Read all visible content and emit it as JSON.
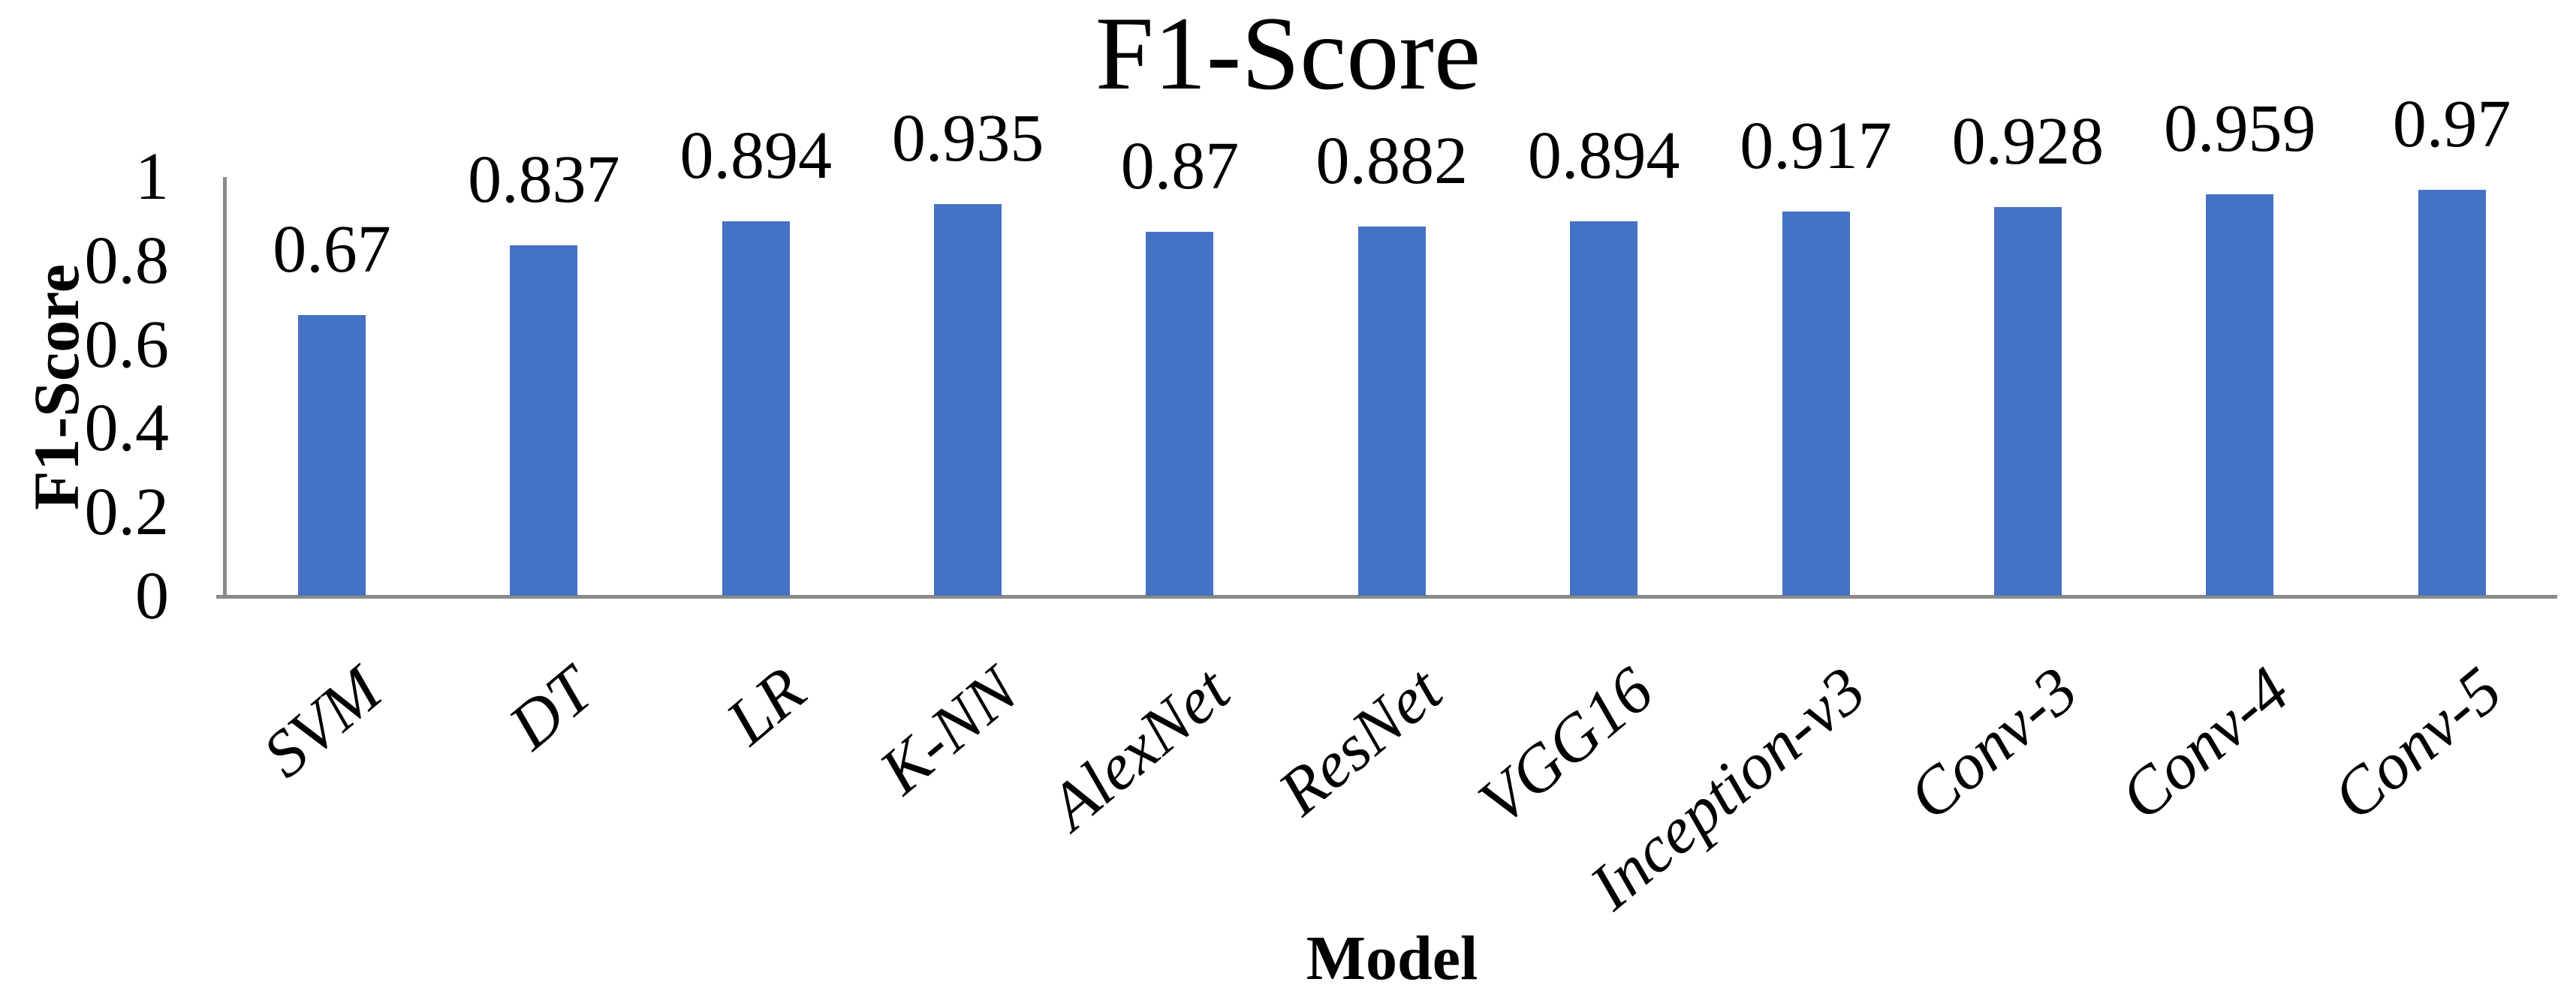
{
  "chart_data": {
    "type": "bar",
    "title": "F1-Score",
    "xlabel": "Model",
    "ylabel": "F1-Score",
    "categories": [
      "SVM",
      "DT",
      "LR",
      "K-NN",
      "AlexNet",
      "ResNet",
      "VGG16",
      "Inception-v3",
      "Conv-3",
      "Conv-4",
      "Conv-5"
    ],
    "values": [
      0.67,
      0.837,
      0.894,
      0.935,
      0.87,
      0.882,
      0.894,
      0.917,
      0.928,
      0.959,
      0.97
    ],
    "data_labels": [
      "0.67",
      "0.837",
      "0.894",
      "0.935",
      "0.87",
      "0.882",
      "0.894",
      "0.917",
      "0.928",
      "0.959",
      "0.97"
    ],
    "y_ticks": [
      {
        "value": 1,
        "label": "1"
      },
      {
        "value": 0.8,
        "label": "0.8"
      },
      {
        "value": 0.6,
        "label": "0.6"
      },
      {
        "value": 0.4,
        "label": "0.4"
      },
      {
        "value": 0.2,
        "label": "0.2"
      },
      {
        "value": 0,
        "label": "0"
      }
    ],
    "ylim": [
      0,
      1
    ],
    "grid": false,
    "legend": "none",
    "colors": {
      "bar": "#4472C4",
      "axis": "#8a8a8a",
      "text": "#000000",
      "background": "#ffffff"
    }
  }
}
